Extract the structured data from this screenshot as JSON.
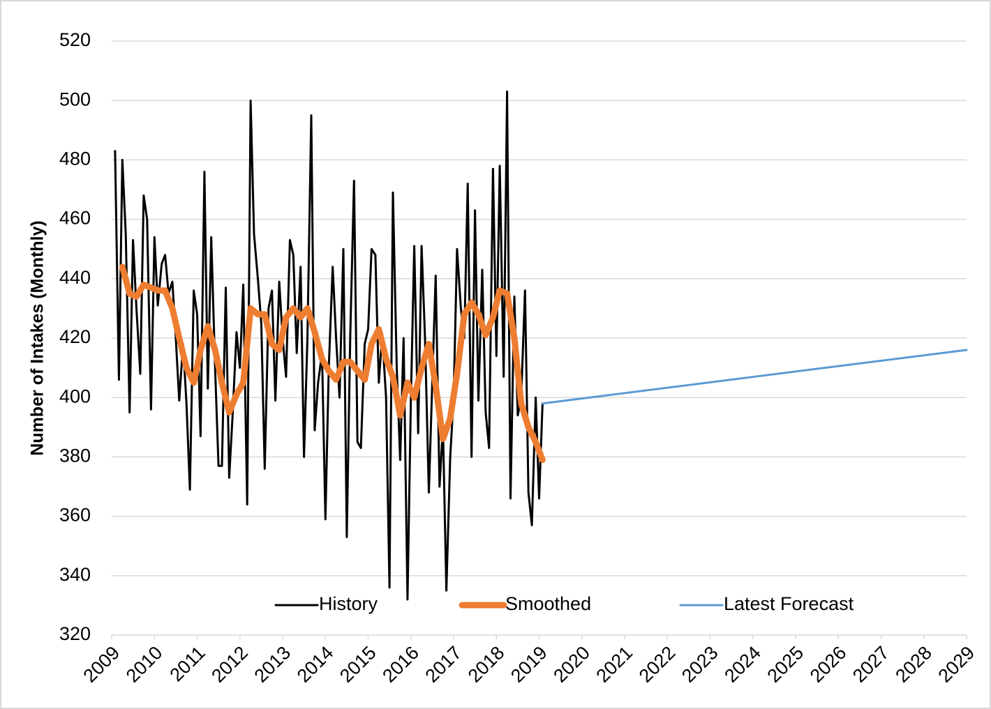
{
  "chart_data": {
    "type": "line",
    "y_label": "Number of Intakes (Monthly)",
    "xlim": [
      2009,
      2029
    ],
    "xticks": [
      2009,
      2010,
      2011,
      2012,
      2013,
      2014,
      2015,
      2016,
      2017,
      2018,
      2019,
      2020,
      2021,
      2022,
      2023,
      2024,
      2025,
      2026,
      2027,
      2028,
      2029
    ],
    "ylim": [
      320,
      520
    ],
    "yticks": [
      320,
      340,
      360,
      380,
      400,
      420,
      440,
      460,
      480,
      500,
      520
    ],
    "grid": true,
    "legend": "bottom",
    "series": [
      {
        "name": "History",
        "color": "#000000",
        "x": [
          2009.08,
          2009.17,
          2009.25,
          2009.33,
          2009.42,
          2009.5,
          2009.58,
          2009.67,
          2009.75,
          2009.83,
          2009.92,
          2010,
          2010.08,
          2010.17,
          2010.25,
          2010.33,
          2010.42,
          2010.5,
          2010.58,
          2010.67,
          2010.75,
          2010.83,
          2010.92,
          2011,
          2011.08,
          2011.17,
          2011.25,
          2011.33,
          2011.42,
          2011.5,
          2011.58,
          2011.67,
          2011.75,
          2011.83,
          2011.92,
          2012,
          2012.08,
          2012.17,
          2012.25,
          2012.33,
          2012.42,
          2012.5,
          2012.58,
          2012.67,
          2012.75,
          2012.83,
          2012.92,
          2013,
          2013.08,
          2013.17,
          2013.25,
          2013.33,
          2013.42,
          2013.5,
          2013.58,
          2013.67,
          2013.75,
          2013.83,
          2013.92,
          2014,
          2014.08,
          2014.17,
          2014.25,
          2014.33,
          2014.42,
          2014.5,
          2014.58,
          2014.67,
          2014.75,
          2014.83,
          2014.92,
          2015,
          2015.08,
          2015.17,
          2015.25,
          2015.33,
          2015.42,
          2015.5,
          2015.58,
          2015.67,
          2015.75,
          2015.83,
          2015.92,
          2016,
          2016.08,
          2016.17,
          2016.25,
          2016.33,
          2016.42,
          2016.5,
          2016.58,
          2016.67,
          2016.75,
          2016.83,
          2016.92,
          2017,
          2017.08,
          2017.17,
          2017.25,
          2017.33,
          2017.42,
          2017.5,
          2017.58,
          2017.67,
          2017.75,
          2017.83,
          2017.92,
          2018,
          2018.08,
          2018.17,
          2018.25,
          2018.33,
          2018.42,
          2018.5,
          2018.58,
          2018.67,
          2018.75,
          2018.83,
          2018.92,
          2019,
          2019.08
        ],
        "values": [
          483,
          406,
          480,
          455,
          395,
          453,
          430,
          408,
          468,
          460,
          396,
          454,
          431,
          445,
          448,
          435,
          439,
          420,
          399,
          418,
          398,
          369,
          436,
          428,
          387,
          476,
          403,
          454,
          410,
          377,
          377,
          437,
          373,
          394,
          422,
          410,
          438,
          364,
          500,
          455,
          440,
          425,
          376,
          430,
          436,
          399,
          439,
          420,
          407,
          453,
          448,
          415,
          444,
          380,
          420,
          495,
          389,
          405,
          415,
          359,
          410,
          444,
          420,
          400,
          450,
          353,
          420,
          473,
          385,
          383,
          418,
          423,
          450,
          448,
          405,
          421,
          400,
          336,
          469,
          410,
          379,
          420,
          332,
          400,
          451,
          388,
          451,
          420,
          368,
          405,
          441,
          370,
          390,
          335,
          380,
          400,
          450,
          430,
          420,
          472,
          380,
          463,
          399,
          443,
          395,
          383,
          477,
          414,
          478,
          407,
          503,
          366,
          434,
          394,
          400,
          436,
          368,
          357,
          400,
          366,
          398
        ]
      },
      {
        "name": "Smoothed",
        "color": "#ED7D31",
        "x": [
          2009.25,
          2009.42,
          2009.58,
          2009.75,
          2009.92,
          2010.08,
          2010.25,
          2010.42,
          2010.58,
          2010.75,
          2010.92,
          2011.08,
          2011.25,
          2011.42,
          2011.58,
          2011.75,
          2011.92,
          2012.08,
          2012.25,
          2012.42,
          2012.58,
          2012.75,
          2012.92,
          2013.08,
          2013.25,
          2013.42,
          2013.58,
          2013.75,
          2013.92,
          2014.08,
          2014.25,
          2014.42,
          2014.58,
          2014.75,
          2014.92,
          2015.08,
          2015.25,
          2015.42,
          2015.58,
          2015.75,
          2015.92,
          2016.08,
          2016.25,
          2016.42,
          2016.58,
          2016.75,
          2016.92,
          2017.08,
          2017.25,
          2017.42,
          2017.58,
          2017.75,
          2017.92,
          2018.08,
          2018.25,
          2018.42,
          2018.58,
          2018.75,
          2018.92,
          2019.08
        ],
        "values": [
          444,
          435,
          434,
          438,
          437,
          436,
          436,
          430,
          420,
          410,
          405,
          416,
          424,
          416,
          405,
          395,
          401,
          405,
          430,
          428,
          428,
          418,
          416,
          427,
          430,
          427,
          430,
          422,
          413,
          409,
          406,
          412,
          412,
          409,
          406,
          418,
          423,
          413,
          407,
          394,
          405,
          400,
          410,
          418,
          404,
          386,
          393,
          408,
          428,
          432,
          428,
          421,
          427,
          436,
          435,
          420,
          398,
          390,
          385,
          379
        ]
      },
      {
        "name": "Latest Forecast",
        "color": "#5B9BD5",
        "x": [
          2019.08,
          2029
        ],
        "values": [
          398,
          416
        ]
      }
    ]
  }
}
